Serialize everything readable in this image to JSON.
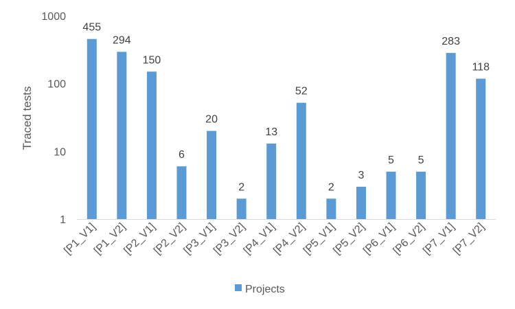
{
  "chart_data": {
    "type": "bar",
    "title": "",
    "xlabel": "",
    "ylabel": "Traced tests",
    "yscale": "log",
    "ylim": [
      1,
      1000
    ],
    "yticks": [
      "1",
      "10",
      "100",
      "1000"
    ],
    "grid": false,
    "legend_position": "bottom",
    "categories": [
      "[P1_V1]",
      "[P1_V2]",
      "[P2_V1]",
      "[P2_V2]",
      "[P3_V1]",
      "[P3_V2]",
      "[P4_V1]",
      "[P4_V2]",
      "[P5_V1]",
      "[P5_V2]",
      "[P6_V1]",
      "[P6_V2]",
      "[P7_V1]",
      "[P7_V2]"
    ],
    "series": [
      {
        "name": "Projects",
        "color": "#5b9bd5",
        "values": [
          455,
          294,
          150,
          6,
          20,
          2,
          13,
          52,
          2,
          3,
          5,
          5,
          283,
          118
        ]
      }
    ]
  }
}
